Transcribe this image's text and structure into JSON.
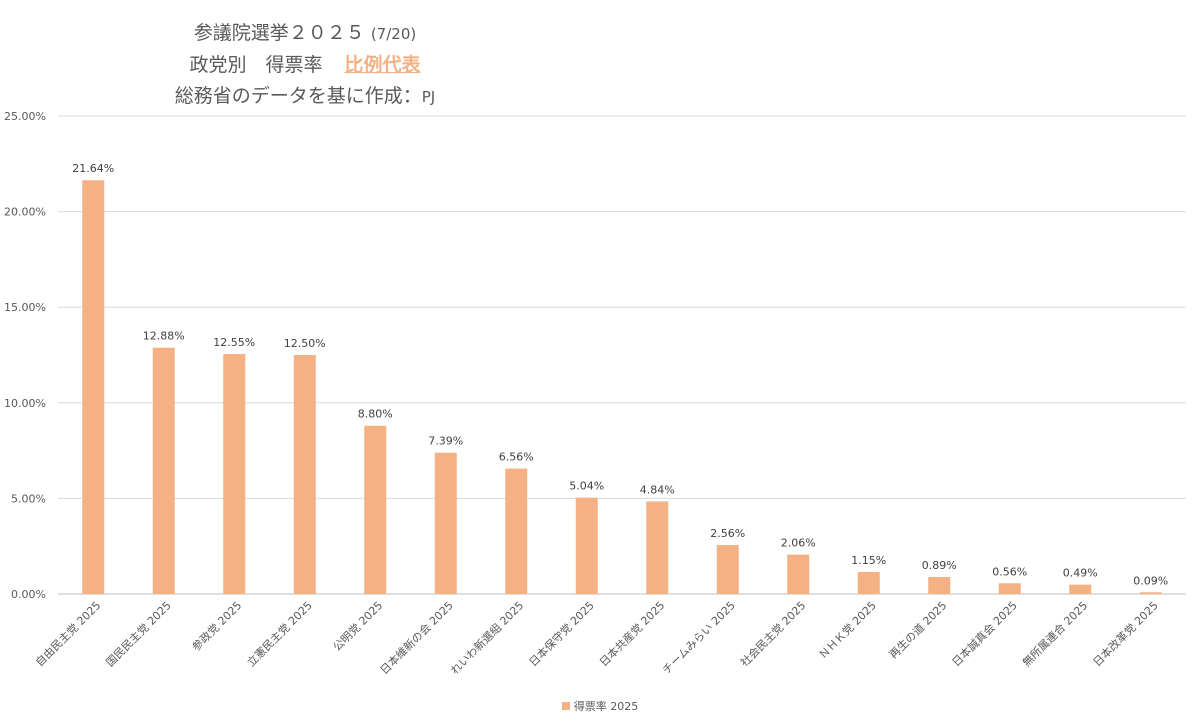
{
  "title": {
    "line1": "参議院選挙２０２５",
    "line1_suffix": "(7/20)",
    "line2": "政党別　得票率",
    "line2_accent": "比例代表",
    "line3": "総務省のデータを基に作成：",
    "line3_suffix": "PJ"
  },
  "colors": {
    "bar": "#f4b183",
    "grid": "#d9d9d9",
    "accent": "#f4b183"
  },
  "legend": {
    "label": "得票率 2025",
    "placement": "bottom"
  },
  "chart_data": {
    "type": "bar",
    "title": "参議院選挙２０２５ (7/20) 政党別　得票率　比例代表 総務省のデータを基に作成：PJ",
    "xlabel": "",
    "ylabel": "",
    "ylim": [
      0,
      25
    ],
    "grid": true,
    "y_ticks": [
      "0.00%",
      "5.00%",
      "10.00%",
      "15.00%",
      "20.00%",
      "25.00%"
    ],
    "y_tick_values": [
      0,
      5,
      10,
      15,
      20,
      25
    ],
    "categories": [
      "自由民主党 2025",
      "国民民主党 2025",
      "参政党 2025",
      "立憲民主党 2025",
      "公明党 2025",
      "日本維新の会 2025",
      "れいわ新選組 2025",
      "日本保守党 2025",
      "日本共産党 2025",
      "チームみらい 2025",
      "社会民主党 2025",
      "ＮＨＫ党 2025",
      "再生の道 2025",
      "日本誠真会 2025",
      "無所属連合 2025",
      "日本改革党 2025"
    ],
    "series": [
      {
        "name": "得票率 2025",
        "values": [
          21.64,
          12.88,
          12.55,
          12.5,
          8.8,
          7.39,
          6.56,
          5.04,
          4.84,
          2.56,
          2.06,
          1.15,
          0.89,
          0.56,
          0.49,
          0.09
        ],
        "labels": [
          "21.64%",
          "12.88%",
          "12.55%",
          "12.50%",
          "8.80%",
          "7.39%",
          "6.56%",
          "5.04%",
          "4.84%",
          "2.56%",
          "2.06%",
          "1.15%",
          "0.89%",
          "0.56%",
          "0.49%",
          "0.09%"
        ]
      }
    ]
  }
}
